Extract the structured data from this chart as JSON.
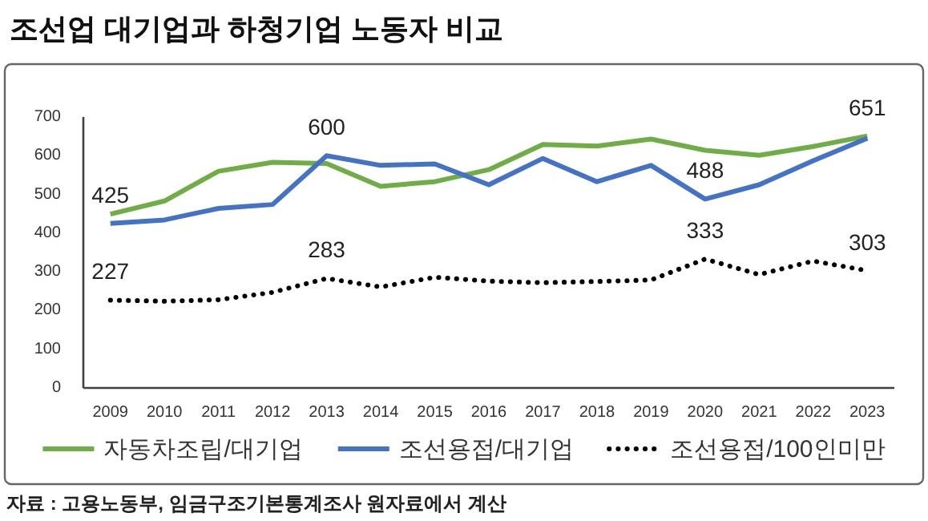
{
  "chart_data": {
    "type": "line",
    "title": "조선업 대기업과 하청기업 노동자 비교",
    "categories": [
      "2009",
      "2010",
      "2011",
      "2012",
      "2013",
      "2014",
      "2015",
      "2016",
      "2017",
      "2018",
      "2019",
      "2020",
      "2021",
      "2022",
      "2023"
    ],
    "series": [
      {
        "name": "자동차조립/대기업",
        "color": "#70ad47",
        "line_style": "solid",
        "values": [
          449,
          483,
          560,
          583,
          580,
          521,
          533,
          564,
          629,
          625,
          643,
          614,
          601,
          624,
          651
        ]
      },
      {
        "name": "조선용접/대기업",
        "color": "#4472c4",
        "line_style": "solid",
        "values": [
          425,
          434,
          464,
          474,
          600,
          575,
          579,
          525,
          593,
          533,
          575,
          488,
          525,
          587,
          645
        ]
      },
      {
        "name": "조선용접/100인미만",
        "color": "#000000",
        "line_style": "dotted",
        "values": [
          227,
          224,
          228,
          247,
          283,
          261,
          286,
          276,
          272,
          275,
          279,
          333,
          293,
          328,
          303
        ]
      }
    ],
    "ylim": [
      0,
      700
    ],
    "yticks": [
      0,
      100,
      200,
      300,
      400,
      500,
      600,
      700
    ],
    "grid": false,
    "legend": "bottom",
    "annotations": [
      {
        "text": "425",
        "x": "2009",
        "y": 425
      },
      {
        "text": "600",
        "x": "2013",
        "y": 600
      },
      {
        "text": "651",
        "x": "2023",
        "y": 651
      },
      {
        "text": "488",
        "x": "2020",
        "y": 488
      },
      {
        "text": "227",
        "x": "2009",
        "y": 227
      },
      {
        "text": "283",
        "x": "2013",
        "y": 283
      },
      {
        "text": "333",
        "x": "2020",
        "y": 333
      },
      {
        "text": "303",
        "x": "2023",
        "y": 303
      },
      "자료 : 고용노동부, 임금구조기본통계조사 원자료에서 계산"
    ]
  }
}
